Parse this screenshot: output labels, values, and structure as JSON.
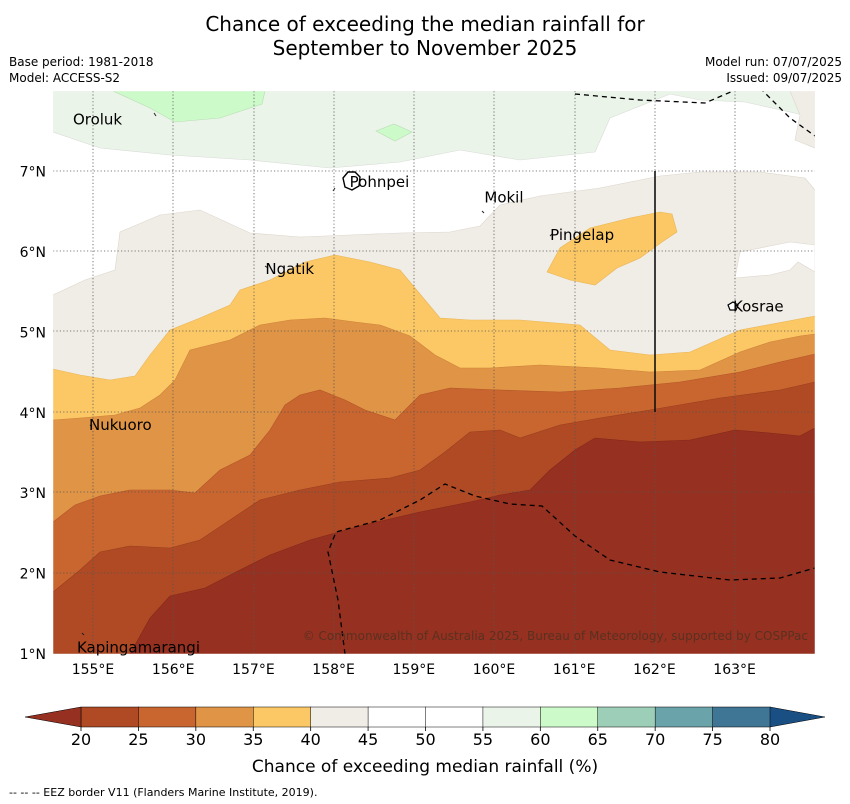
{
  "title_line1": "Chance of exceeding the median rainfall for",
  "title_line2": "September to November 2025",
  "base_period": "Base period: 1981-2018",
  "model": "Model: ACCESS-S2",
  "model_run": "Model run: 07/07/2025",
  "issued": "Issued: 09/07/2025",
  "lon_ticks": [
    "155°E",
    "156°E",
    "157°E",
    "158°E",
    "159°E",
    "160°E",
    "161°E",
    "162°E",
    "163°E"
  ],
  "lat_ticks": [
    "1°N",
    "2°N",
    "3°N",
    "4°N",
    "5°N",
    "6°N",
    "7°N"
  ],
  "places": [
    {
      "name": "Oroluk",
      "lon": 154.75,
      "lat": 7.65
    },
    {
      "name": "Pohnpei",
      "lon": 158.2,
      "lat": 6.87
    },
    {
      "name": "Mokil",
      "lon": 159.88,
      "lat": 6.68
    },
    {
      "name": "Pingelap",
      "lon": 160.7,
      "lat": 6.21
    },
    {
      "name": "Ngatik",
      "lon": 157.15,
      "lat": 5.79
    },
    {
      "name": "Kosrae",
      "lon": 162.98,
      "lat": 5.32
    },
    {
      "name": "Nukuoro",
      "lon": 154.95,
      "lat": 3.85
    },
    {
      "name": "Kapingamarangi",
      "lon": 154.8,
      "lat": 1.08
    }
  ],
  "copyright": "© Commonwealth of Australia 2025, Bureau of Meteorology, supported by COSPPac",
  "colorbar": {
    "ticks": [
      "20",
      "25",
      "30",
      "35",
      "40",
      "45",
      "50",
      "55",
      "60",
      "65",
      "70",
      "75",
      "80"
    ],
    "colors": [
      "#af4a24",
      "#c9652f",
      "#df9446",
      "#fbc865",
      "#f0ece6",
      "#ffffff",
      "#ffffff",
      "#eaf4e9",
      "#ccfbc9",
      "#9dcfb8",
      "#6aa3a9",
      "#3f7696"
    ],
    "under_color": "#963020",
    "over_color": "#1a4f84",
    "label": "Chance of exceeding median rainfall (%)"
  },
  "footnote": "--  --  -- EEZ border V11 (Flanders Marine Institute, 2019)."
}
